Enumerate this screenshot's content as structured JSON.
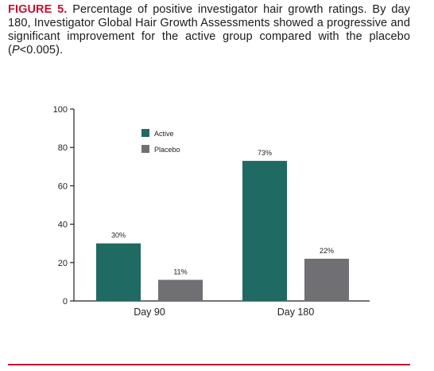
{
  "caption": {
    "figure_label": "FIGURE 5.",
    "text_before_p": " Percentage of positive investigator hair growth ratings. By day 180, Investigator Global Hair Growth Assessments showed a progressive and significant improvement for the active group compared with the placebo (",
    "p_symbol": "P",
    "text_after_p": "<0.005)."
  },
  "colors": {
    "active": "#1f6a63",
    "placebo": "#707074",
    "accent": "#c8102e",
    "axis": "#222222"
  },
  "chart_data": {
    "type": "bar",
    "categories": [
      "Day 90",
      "Day 180"
    ],
    "series": [
      {
        "name": "Active",
        "values": [
          30,
          73
        ],
        "labels": [
          "30%",
          "73%"
        ]
      },
      {
        "name": "Placebo",
        "values": [
          11,
          22
        ],
        "labels": [
          "11%",
          "22%"
        ]
      }
    ],
    "ylim": [
      0,
      100
    ],
    "yticks": [
      0,
      20,
      40,
      60,
      80,
      100
    ],
    "xlabel": "",
    "ylabel": "",
    "grid": false,
    "legend_position": "top-left"
  }
}
